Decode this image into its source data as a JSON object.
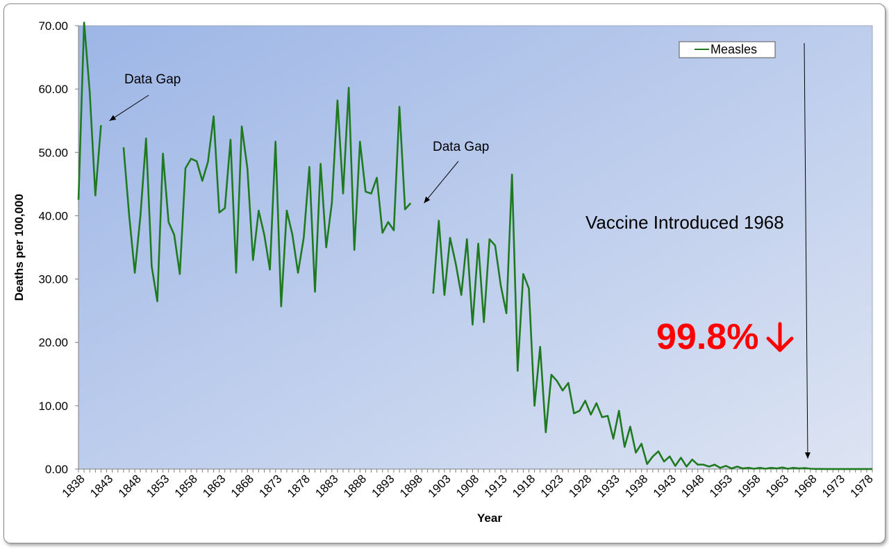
{
  "chart_data": {
    "type": "line",
    "xlabel": "Year",
    "ylabel": "Deaths per 100,000",
    "ylim": [
      0,
      70
    ],
    "xlim": [
      1838,
      1979
    ],
    "y_ticks": [
      "0.00",
      "10.00",
      "20.00",
      "30.00",
      "40.00",
      "50.00",
      "60.00",
      "70.00"
    ],
    "x_ticks": [
      "1838",
      "1843",
      "1848",
      "1853",
      "1858",
      "1863",
      "1868",
      "1873",
      "1878",
      "1883",
      "1888",
      "1893",
      "1898",
      "1903",
      "1908",
      "1913",
      "1918",
      "1923",
      "1928",
      "1933",
      "1938",
      "1943",
      "1948",
      "1953",
      "1958",
      "1963",
      "1968",
      "1973",
      "1978"
    ],
    "legend": {
      "position": "top-right",
      "color": "#1f7a1f"
    },
    "series": [
      {
        "name": "Measles",
        "color": "#1f7a1f",
        "points": [
          [
            1838,
            42.5
          ],
          [
            1839,
            70.5
          ],
          [
            1840,
            59.5
          ],
          [
            1841,
            43.2
          ],
          [
            1842,
            54.3
          ],
          [
            1843,
            null
          ],
          [
            1844,
            null
          ],
          [
            1845,
            null
          ],
          [
            1846,
            50.8
          ],
          [
            1847,
            40.0
          ],
          [
            1848,
            31.0
          ],
          [
            1849,
            40.0
          ],
          [
            1850,
            52.2
          ],
          [
            1851,
            32.0
          ],
          [
            1852,
            26.5
          ],
          [
            1853,
            49.8
          ],
          [
            1854,
            39.0
          ],
          [
            1855,
            37.0
          ],
          [
            1856,
            30.8
          ],
          [
            1857,
            47.5
          ],
          [
            1858,
            49.0
          ],
          [
            1859,
            48.6
          ],
          [
            1860,
            45.5
          ],
          [
            1861,
            48.5
          ],
          [
            1862,
            55.7
          ],
          [
            1863,
            40.5
          ],
          [
            1864,
            41.2
          ],
          [
            1865,
            52.0
          ],
          [
            1866,
            31.0
          ],
          [
            1867,
            54.1
          ],
          [
            1868,
            47.5
          ],
          [
            1869,
            33.0
          ],
          [
            1870,
            40.8
          ],
          [
            1871,
            37.0
          ],
          [
            1872,
            31.5
          ],
          [
            1873,
            51.7
          ],
          [
            1874,
            25.7
          ],
          [
            1875,
            40.8
          ],
          [
            1876,
            37.0
          ],
          [
            1877,
            31.0
          ],
          [
            1878,
            36.5
          ],
          [
            1879,
            47.7
          ],
          [
            1880,
            28.0
          ],
          [
            1881,
            48.2
          ],
          [
            1882,
            35.0
          ],
          [
            1883,
            42.0
          ],
          [
            1884,
            58.2
          ],
          [
            1885,
            43.5
          ],
          [
            1886,
            60.2
          ],
          [
            1887,
            34.6
          ],
          [
            1888,
            51.7
          ],
          [
            1889,
            43.8
          ],
          [
            1890,
            43.5
          ],
          [
            1891,
            46.0
          ],
          [
            1892,
            37.3
          ],
          [
            1893,
            39.0
          ],
          [
            1894,
            37.7
          ],
          [
            1895,
            57.2
          ],
          [
            1896,
            41.0
          ],
          [
            1897,
            42.0
          ],
          [
            1898,
            null
          ],
          [
            1899,
            null
          ],
          [
            1900,
            null
          ],
          [
            1901,
            27.7
          ],
          [
            1902,
            39.2
          ],
          [
            1903,
            27.5
          ],
          [
            1904,
            36.5
          ],
          [
            1905,
            32.5
          ],
          [
            1906,
            27.5
          ],
          [
            1907,
            36.3
          ],
          [
            1908,
            22.8
          ],
          [
            1909,
            35.6
          ],
          [
            1910,
            23.2
          ],
          [
            1911,
            36.3
          ],
          [
            1912,
            35.3
          ],
          [
            1913,
            29.0
          ],
          [
            1914,
            24.6
          ],
          [
            1915,
            46.5
          ],
          [
            1916,
            15.5
          ],
          [
            1917,
            30.8
          ],
          [
            1918,
            28.5
          ],
          [
            1919,
            10.0
          ],
          [
            1920,
            19.3
          ],
          [
            1921,
            5.8
          ],
          [
            1922,
            14.9
          ],
          [
            1923,
            13.9
          ],
          [
            1924,
            12.4
          ],
          [
            1925,
            13.6
          ],
          [
            1926,
            8.8
          ],
          [
            1927,
            9.2
          ],
          [
            1928,
            10.8
          ],
          [
            1929,
            8.6
          ],
          [
            1930,
            10.4
          ],
          [
            1931,
            8.2
          ],
          [
            1932,
            8.4
          ],
          [
            1933,
            4.8
          ],
          [
            1934,
            9.2
          ],
          [
            1935,
            3.5
          ],
          [
            1936,
            6.7
          ],
          [
            1937,
            2.6
          ],
          [
            1938,
            4.0
          ],
          [
            1939,
            0.8
          ],
          [
            1940,
            2.0
          ],
          [
            1941,
            2.8
          ],
          [
            1942,
            1.2
          ],
          [
            1943,
            2.0
          ],
          [
            1944,
            0.5
          ],
          [
            1945,
            1.8
          ],
          [
            1946,
            0.4
          ],
          [
            1947,
            1.5
          ],
          [
            1948,
            0.7
          ],
          [
            1949,
            0.7
          ],
          [
            1950,
            0.4
          ],
          [
            1951,
            0.7
          ],
          [
            1952,
            0.2
          ],
          [
            1953,
            0.5
          ],
          [
            1954,
            0.1
          ],
          [
            1955,
            0.4
          ],
          [
            1956,
            0.1
          ],
          [
            1957,
            0.2
          ],
          [
            1958,
            0.05
          ],
          [
            1959,
            0.2
          ],
          [
            1960,
            0.05
          ],
          [
            1961,
            0.2
          ],
          [
            1962,
            0.1
          ],
          [
            1963,
            0.25
          ],
          [
            1964,
            0.05
          ],
          [
            1965,
            0.2
          ],
          [
            1966,
            0.1
          ],
          [
            1967,
            0.15
          ],
          [
            1968,
            0.05
          ],
          [
            1969,
            0.02
          ],
          [
            1970,
            0.02
          ],
          [
            1971,
            0.01
          ],
          [
            1972,
            0.01
          ],
          [
            1973,
            0.01
          ],
          [
            1974,
            0.01
          ],
          [
            1975,
            0.01
          ],
          [
            1976,
            0.01
          ],
          [
            1977,
            0.01
          ],
          [
            1978,
            0.01
          ],
          [
            1979,
            0.01
          ]
        ]
      }
    ],
    "annotations": {
      "gap1": {
        "text": "Data Gap",
        "arrow_to": [
          1843.5,
          55
        ]
      },
      "gap2": {
        "text": "Data Gap",
        "arrow_to": [
          1899,
          42
        ]
      },
      "vaccine": {
        "text": "Vaccine Introduced 1968",
        "arrow_to": [
          1968,
          1
        ]
      },
      "drop": {
        "text": "99.8%",
        "arrow_glyph": "↓"
      }
    },
    "background": {
      "from": "#9db6e6",
      "to": "#dde4f3"
    },
    "grid": false
  }
}
